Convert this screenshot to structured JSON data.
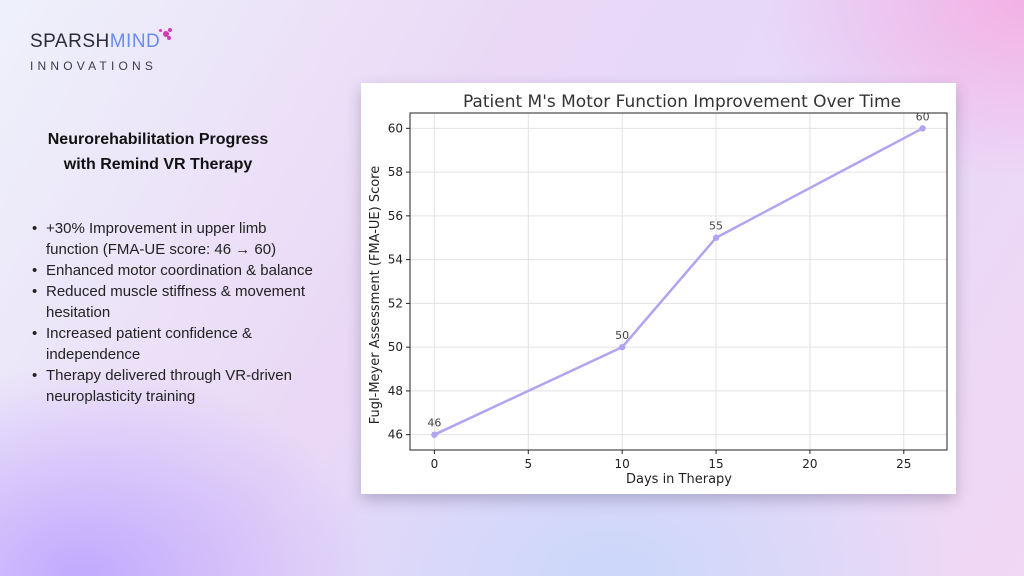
{
  "brand": {
    "name_part1": "SPARSH",
    "name_part2": "MIND",
    "subtitle": "INNOVATIONS",
    "logo_icon": "molecule-dots-icon",
    "colors": {
      "dark": "#2a2a3a",
      "blue": "#6a8cf0",
      "magenta": "#d23ab4"
    }
  },
  "heading": {
    "line1": "Neurorehabilitation Progress",
    "line2": "with Remind VR Therapy"
  },
  "bullets": [
    "+30% Improvement in upper limb function (FMA-UE score: 46 → 60)",
    "Enhanced motor coordination & balance",
    "Reduced muscle stiffness & movement hesitation",
    "Increased patient confidence & independence",
    "Therapy delivered through VR-driven neuroplasticity training"
  ],
  "chart_data": {
    "type": "line",
    "title": "Patient M's Motor Function Improvement Over Time",
    "xlabel": "Days in Therapy",
    "ylabel": "Fugl-Meyer Assessment (FMA-UE) Score",
    "x": [
      0,
      10,
      15,
      26
    ],
    "y": [
      46,
      50,
      55,
      60
    ],
    "point_labels": [
      "46",
      "50",
      "55",
      "60"
    ],
    "xlim": [
      -1.3,
      27.3
    ],
    "ylim": [
      45.3,
      60.7
    ],
    "xticks": [
      0,
      5,
      10,
      15,
      20,
      25
    ],
    "yticks": [
      46,
      48,
      50,
      52,
      54,
      56,
      58,
      60
    ],
    "grid": true,
    "line_color": "#b3a3f0"
  }
}
